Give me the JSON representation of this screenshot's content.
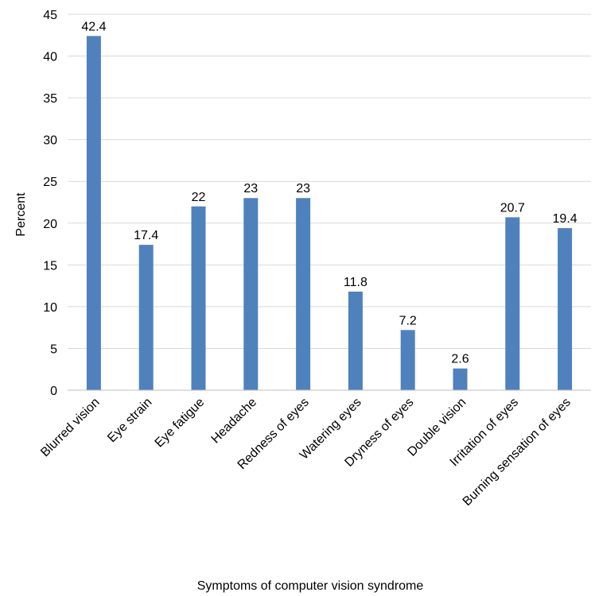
{
  "chart_data": {
    "type": "bar",
    "title": "",
    "xlabel": "Symptoms of computer vision syndrome",
    "ylabel": "Percent",
    "ylim": [
      0,
      45
    ],
    "yticks": [
      0,
      5,
      10,
      15,
      20,
      25,
      30,
      35,
      40,
      45
    ],
    "grid": true,
    "legend": "none",
    "bar_color": "#4f81bd",
    "categories": [
      "Blurred vision",
      "Eye strain",
      "Eye fatigue",
      "Headache",
      "Redness of eyes",
      "Watering eyes",
      "Dryness of eyes",
      "Double vision",
      "Irritation of eyes",
      "Burning sensation of eyes"
    ],
    "values": [
      42.4,
      17.4,
      22,
      23,
      23,
      11.8,
      7.2,
      2.6,
      20.7,
      19.4
    ],
    "data_labels": [
      "42.4",
      "17.4",
      "22",
      "23",
      "23",
      "11.8",
      "7.2",
      "2.6",
      "20.7",
      "19.4"
    ]
  }
}
